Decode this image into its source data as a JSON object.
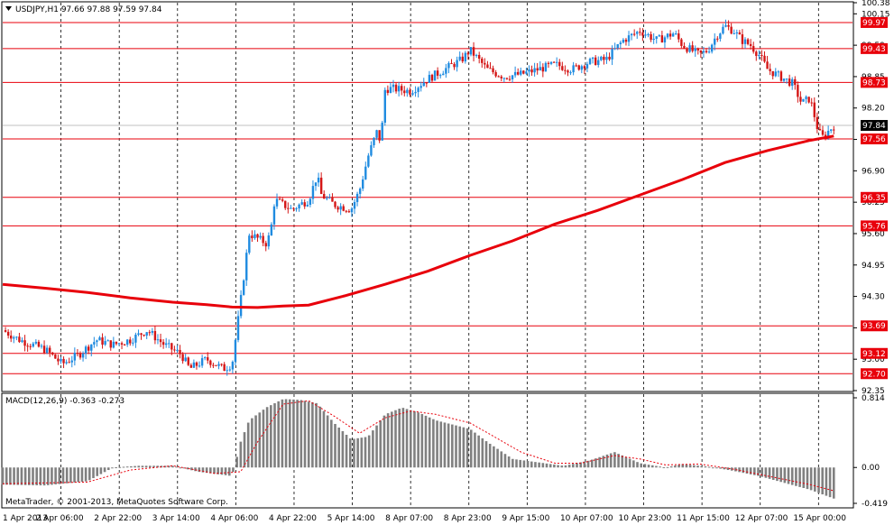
{
  "colors": {
    "up_candle": "#1f8be0",
    "down_candle": "#d41616",
    "level_line": "#e8000b",
    "moving_average": "#e8000b",
    "macd_histogram": "#808080",
    "macd_signal": "#e8000b",
    "current_price_tag": "#000000",
    "level_tag": "#e8000b"
  },
  "window": {
    "menu_icon": "triangle-down-icon",
    "header": "USDJPY,H1  97.66 97.88 97.59 97.84",
    "copyright": "MetaTrader, © 2001-2013, MetaQuotes Software Corp."
  },
  "chart_data": [
    {
      "type": "candlestick",
      "symbol": "USDJPY",
      "timeframe": "H1",
      "ohlc_last": {
        "open": 97.66,
        "high": 97.88,
        "low": 97.59,
        "close": 97.84
      },
      "ylim": [
        92.35,
        100.38
      ],
      "y_ticks": [
        "100.38",
        "100.15",
        "99.50",
        "98.85",
        "98.20",
        "97.55",
        "96.90",
        "96.25",
        "95.60",
        "94.95",
        "94.30",
        "93.65",
        "93.00",
        "92.35"
      ],
      "current_price": "97.84",
      "levels": [
        "99.97",
        "99.43",
        "98.73",
        "97.56",
        "96.35",
        "95.76",
        "93.69",
        "93.12",
        "92.70"
      ],
      "x_ticks": [
        "1 Apr 2013",
        "2 Apr 06:00",
        "2 Apr 22:00",
        "3 Apr 14:00",
        "4 Apr 06:00",
        "4 Apr 22:00",
        "5 Apr 14:00",
        "8 Apr 07:00",
        "8 Apr 23:00",
        "9 Apr 15:00",
        "10 Apr 07:00",
        "10 Apr 23:00",
        "11 Apr 15:00",
        "12 Apr 07:00",
        "15 Apr 00:00"
      ],
      "moving_average": {
        "x": [
          0,
          0.05,
          0.1,
          0.15,
          0.2,
          0.24,
          0.27,
          0.3,
          0.33,
          0.36,
          0.4,
          0.45,
          0.5,
          0.55,
          0.6,
          0.65,
          0.7,
          0.75,
          0.8,
          0.85,
          0.9,
          0.95,
          0.978
        ],
        "y": [
          94.55,
          94.47,
          94.38,
          94.27,
          94.18,
          94.13,
          94.08,
          94.07,
          94.1,
          94.12,
          94.3,
          94.55,
          94.82,
          95.15,
          95.45,
          95.8,
          96.08,
          96.4,
          96.72,
          97.07,
          97.32,
          97.53,
          97.62
        ]
      },
      "price_path": [
        [
          0,
          93.6
        ],
        [
          0.02,
          93.4
        ],
        [
          0.05,
          93.2
        ],
        [
          0.07,
          92.9
        ],
        [
          0.09,
          93.1
        ],
        [
          0.11,
          93.4
        ],
        [
          0.13,
          93.3
        ],
        [
          0.15,
          93.4
        ],
        [
          0.17,
          93.6
        ],
        [
          0.19,
          93.3
        ],
        [
          0.21,
          93.1
        ],
        [
          0.22,
          92.8
        ],
        [
          0.24,
          93.0
        ],
        [
          0.26,
          92.8
        ],
        [
          0.27,
          92.9
        ],
        [
          0.28,
          94.2
        ],
        [
          0.29,
          95.6
        ],
        [
          0.3,
          95.5
        ],
        [
          0.31,
          95.4
        ],
        [
          0.315,
          95.6
        ],
        [
          0.32,
          96.3
        ],
        [
          0.34,
          96.1
        ],
        [
          0.36,
          96.3
        ],
        [
          0.37,
          96.8
        ],
        [
          0.375,
          96.4
        ],
        [
          0.39,
          96.2
        ],
        [
          0.41,
          96.1
        ],
        [
          0.42,
          96.5
        ],
        [
          0.43,
          97.2
        ],
        [
          0.44,
          97.7
        ],
        [
          0.445,
          97.5
        ],
        [
          0.45,
          98.6
        ],
        [
          0.46,
          98.6
        ],
        [
          0.48,
          98.55
        ],
        [
          0.5,
          98.8
        ],
        [
          0.52,
          99.0
        ],
        [
          0.54,
          99.2
        ],
        [
          0.55,
          99.4
        ],
        [
          0.56,
          99.2
        ],
        [
          0.57,
          99.0
        ],
        [
          0.59,
          98.85
        ],
        [
          0.61,
          98.9
        ],
        [
          0.63,
          99.0
        ],
        [
          0.65,
          99.1
        ],
        [
          0.67,
          99.0
        ],
        [
          0.69,
          99.15
        ],
        [
          0.71,
          99.2
        ],
        [
          0.72,
          99.4
        ],
        [
          0.73,
          99.6
        ],
        [
          0.75,
          99.8
        ],
        [
          0.77,
          99.6
        ],
        [
          0.79,
          99.75
        ],
        [
          0.8,
          99.5
        ],
        [
          0.82,
          99.3
        ],
        [
          0.83,
          99.4
        ],
        [
          0.84,
          99.7
        ],
        [
          0.85,
          99.9
        ],
        [
          0.86,
          99.8
        ],
        [
          0.87,
          99.6
        ],
        [
          0.88,
          99.5
        ],
        [
          0.89,
          99.3
        ],
        [
          0.9,
          99.0
        ],
        [
          0.91,
          98.9
        ],
        [
          0.92,
          98.8
        ],
        [
          0.93,
          98.7
        ],
        [
          0.94,
          98.3
        ],
        [
          0.95,
          98.4
        ],
        [
          0.96,
          97.7
        ],
        [
          0.965,
          97.6
        ],
        [
          0.978,
          97.84
        ]
      ]
    },
    {
      "type": "bar",
      "title": "MACD(12,26,9) -0.363 -0.273",
      "ylim": [
        -0.419,
        0.814
      ],
      "y_ticks": [
        "0.814",
        "0.00",
        "-0.419"
      ],
      "histogram_path": [
        [
          0,
          -0.2
        ],
        [
          0.05,
          -0.21
        ],
        [
          0.1,
          -0.16
        ],
        [
          0.13,
          0.0
        ],
        [
          0.16,
          0.02
        ],
        [
          0.2,
          0.02
        ],
        [
          0.23,
          -0.05
        ],
        [
          0.27,
          -0.1
        ],
        [
          0.28,
          0.3
        ],
        [
          0.29,
          0.55
        ],
        [
          0.31,
          0.7
        ],
        [
          0.33,
          0.8
        ],
        [
          0.35,
          0.79
        ],
        [
          0.37,
          0.75
        ],
        [
          0.39,
          0.52
        ],
        [
          0.41,
          0.33
        ],
        [
          0.43,
          0.36
        ],
        [
          0.45,
          0.62
        ],
        [
          0.47,
          0.7
        ],
        [
          0.49,
          0.64
        ],
        [
          0.51,
          0.55
        ],
        [
          0.55,
          0.45
        ],
        [
          0.57,
          0.3
        ],
        [
          0.6,
          0.1
        ],
        [
          0.63,
          0.06
        ],
        [
          0.66,
          0.02
        ],
        [
          0.69,
          0.08
        ],
        [
          0.72,
          0.18
        ],
        [
          0.75,
          0.05
        ],
        [
          0.78,
          0.0
        ],
        [
          0.8,
          0.04
        ],
        [
          0.83,
          0.01
        ],
        [
          0.86,
          -0.04
        ],
        [
          0.89,
          -0.1
        ],
        [
          0.92,
          -0.18
        ],
        [
          0.95,
          -0.26
        ],
        [
          0.978,
          -0.363
        ]
      ],
      "signal_path": [
        [
          0,
          -0.19
        ],
        [
          0.1,
          -0.17
        ],
        [
          0.15,
          -0.03
        ],
        [
          0.2,
          0.02
        ],
        [
          0.25,
          -0.07
        ],
        [
          0.28,
          -0.05
        ],
        [
          0.3,
          0.3
        ],
        [
          0.33,
          0.74
        ],
        [
          0.36,
          0.78
        ],
        [
          0.39,
          0.6
        ],
        [
          0.42,
          0.4
        ],
        [
          0.45,
          0.58
        ],
        [
          0.48,
          0.66
        ],
        [
          0.51,
          0.62
        ],
        [
          0.55,
          0.52
        ],
        [
          0.58,
          0.35
        ],
        [
          0.61,
          0.18
        ],
        [
          0.65,
          0.05
        ],
        [
          0.68,
          0.05
        ],
        [
          0.72,
          0.14
        ],
        [
          0.75,
          0.1
        ],
        [
          0.78,
          0.03
        ],
        [
          0.82,
          0.04
        ],
        [
          0.86,
          -0.02
        ],
        [
          0.9,
          -0.1
        ],
        [
          0.95,
          -0.2
        ],
        [
          0.978,
          -0.273
        ]
      ]
    }
  ]
}
